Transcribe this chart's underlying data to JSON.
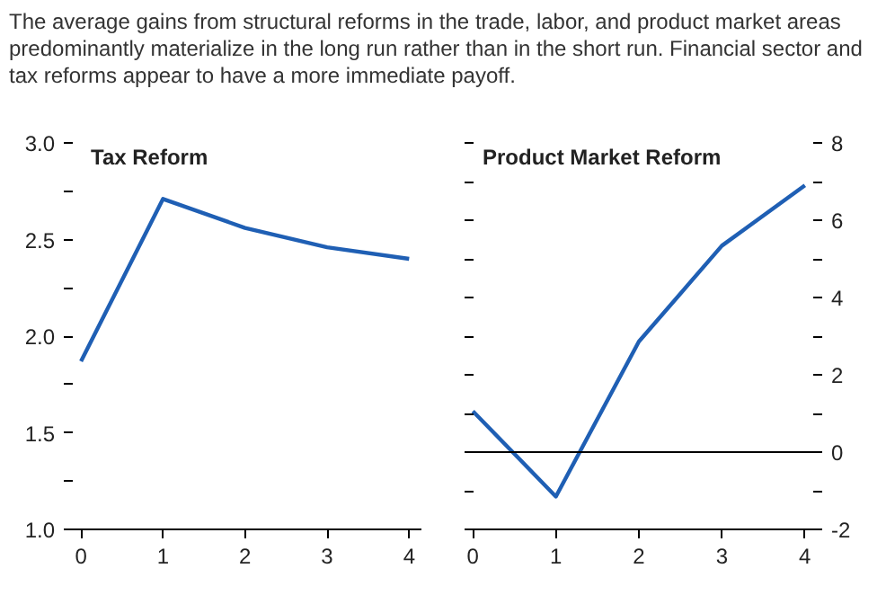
{
  "chart_data": [
    {
      "type": "line",
      "title": "Tax Reform",
      "annotations": [
        "The average gains from structural reforms in the trade, labor, and product market areas predominantly materialize in the long run rather than in the short run. Financial sector and tax reforms appear to have a more immediate payoff."
      ],
      "x": [
        0,
        1,
        2,
        3,
        4
      ],
      "xlim": [
        -0.1,
        4.15
      ],
      "xticks": [
        0,
        1,
        2,
        3,
        4
      ],
      "ylim": [
        1.0,
        3.0
      ],
      "yticks": [
        {
          "value": 1.0,
          "label": "1.0"
        },
        {
          "value": 1.25,
          "label": null
        },
        {
          "value": 1.5,
          "label": "1.5"
        },
        {
          "value": 1.75,
          "label": null
        },
        {
          "value": 2.0,
          "label": "2.0"
        },
        {
          "value": 2.25,
          "label": null
        },
        {
          "value": 2.5,
          "label": "2.5"
        },
        {
          "value": 2.75,
          "label": null
        },
        {
          "value": 3.0,
          "label": "3.0"
        }
      ],
      "series": [
        {
          "color": "#1f5fb4",
          "values": [
            1.87,
            2.71,
            2.56,
            2.46,
            2.4
          ]
        }
      ]
    },
    {
      "type": "line",
      "title": "Product Market Reform",
      "x": [
        0,
        1,
        2,
        3,
        4
      ],
      "xlim": [
        -0.1,
        4.1
      ],
      "xticks": [
        0,
        1,
        2,
        3,
        4
      ],
      "y2lim": [
        -2,
        8
      ],
      "y2ticks": [
        -2,
        {
          "value": -1,
          "label": null
        },
        0,
        {
          "value": 1,
          "label": null
        },
        2,
        {
          "value": 3,
          "label": null
        },
        4,
        {
          "value": 5,
          "label": null
        },
        6,
        {
          "value": 7,
          "label": null
        },
        8
      ],
      "series": [
        {
          "color": "#1f5fb4",
          "values": [
            1.06,
            -1.15,
            2.86,
            5.34,
            6.9
          ],
          "axis": "y2"
        }
      ],
      "ref_lines": [
        {
          "axis": "y2",
          "value": 0,
          "color": "#000000"
        }
      ]
    }
  ]
}
